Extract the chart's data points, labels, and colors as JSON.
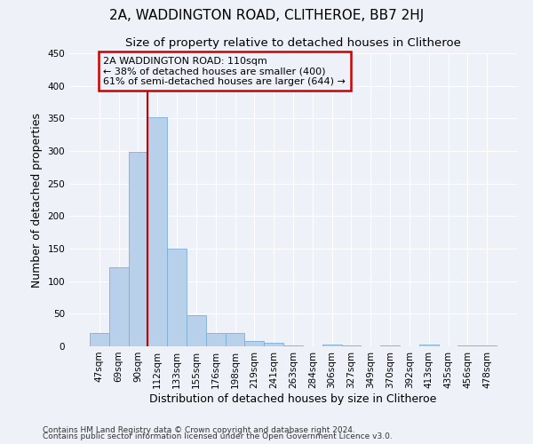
{
  "title": "2A, WADDINGTON ROAD, CLITHEROE, BB7 2HJ",
  "subtitle": "Size of property relative to detached houses in Clitheroe",
  "xlabel": "Distribution of detached houses by size in Clitheroe",
  "ylabel": "Number of detached properties",
  "footnote1": "Contains HM Land Registry data © Crown copyright and database right 2024.",
  "footnote2": "Contains public sector information licensed under the Open Government Licence v3.0.",
  "bar_labels": [
    "47sqm",
    "69sqm",
    "90sqm",
    "112sqm",
    "133sqm",
    "155sqm",
    "176sqm",
    "198sqm",
    "219sqm",
    "241sqm",
    "263sqm",
    "284sqm",
    "306sqm",
    "327sqm",
    "349sqm",
    "370sqm",
    "392sqm",
    "413sqm",
    "435sqm",
    "456sqm",
    "478sqm"
  ],
  "bar_values": [
    20,
    122,
    298,
    352,
    150,
    48,
    21,
    21,
    8,
    5,
    2,
    0,
    3,
    1,
    0,
    2,
    0,
    3,
    0,
    1,
    2
  ],
  "bar_color": "#b8d0ea",
  "bar_edge_color": "#7aafd4",
  "property_line_x": 2.5,
  "annotation_line1": "2A WADDINGTON ROAD: 110sqm",
  "annotation_line2": "← 38% of detached houses are smaller (400)",
  "annotation_line3": "61% of semi-detached houses are larger (644) →",
  "annotation_box_color": "#cc0000",
  "annotation_text_color": "#000000",
  "ylim": [
    0,
    450
  ],
  "yticks": [
    0,
    50,
    100,
    150,
    200,
    250,
    300,
    350,
    400,
    450
  ],
  "bg_color": "#eef2f8",
  "grid_color": "#ffffff",
  "title_fontsize": 11,
  "subtitle_fontsize": 9.5,
  "axis_label_fontsize": 9,
  "tick_fontsize": 7.5,
  "annotation_fontsize": 8,
  "footnote_fontsize": 6.5
}
